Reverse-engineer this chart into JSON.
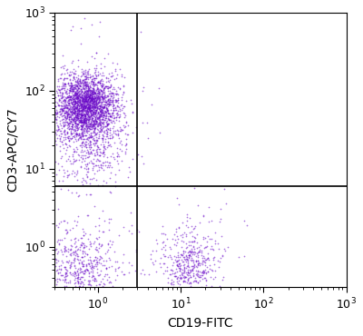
{
  "dot_color": "#6B0AC9",
  "dot_alpha": 0.55,
  "dot_size": 1.5,
  "xlim": [
    0.3,
    1000
  ],
  "ylim": [
    0.3,
    1000
  ],
  "xlabel": "CD19-FITC",
  "ylabel": "CD3-APC/CY7",
  "quadrant_x": 3.0,
  "quadrant_y": 6.0,
  "populations": {
    "T_cells_core": {
      "n": 2200,
      "x_log_mean": -0.15,
      "x_log_std": 0.18,
      "y_log_mean": 1.82,
      "y_log_std": 0.2
    },
    "T_cells_spread": {
      "n": 600,
      "x_log_mean": -0.12,
      "x_log_std": 0.28,
      "y_log_mean": 1.55,
      "y_log_std": 0.32
    },
    "T_cells_tail_low": {
      "n": 150,
      "x_log_mean": -0.1,
      "x_log_std": 0.25,
      "y_log_mean": 1.15,
      "y_log_std": 0.2
    },
    "double_neg": {
      "n": 420,
      "x_log_mean": -0.2,
      "x_log_std": 0.22,
      "y_log_mean": -0.28,
      "y_log_std": 0.22
    },
    "double_neg_sparse": {
      "n": 150,
      "x_log_mean": -0.18,
      "x_log_std": 0.35,
      "y_log_mean": -0.05,
      "y_log_std": 0.28
    },
    "B_cells_core": {
      "n": 320,
      "x_log_mean": 1.1,
      "x_log_std": 0.15,
      "y_log_mean": -0.25,
      "y_log_std": 0.18
    },
    "B_cells_spread": {
      "n": 150,
      "x_log_mean": 1.12,
      "x_log_std": 0.25,
      "y_log_mean": -0.05,
      "y_log_std": 0.28
    },
    "sparse_top": {
      "n": 8,
      "x_log_mean": -0.05,
      "x_log_std": 0.3,
      "y_log_mean": 2.75,
      "y_log_std": 0.08
    }
  },
  "background_color": "#ffffff",
  "tick_label_size": 9,
  "axis_label_size": 10,
  "quadrant_linewidth": 1.2,
  "quadrant_color": "black"
}
